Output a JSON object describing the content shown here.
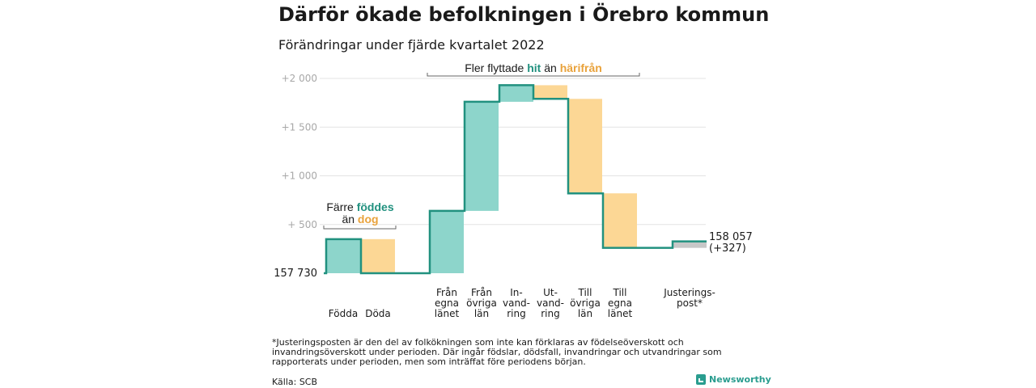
{
  "title": "Därför ökade befolkningen i Örebro kommun",
  "subtitle": "Förändringar under fjärde kvartalet 2022",
  "colors": {
    "teal_fill": "#8dd5cb",
    "teal_line": "#21917f",
    "orange_fill": "#fcd795",
    "orange_text": "#e9a23b",
    "gray_fill": "#c7c7c7",
    "grid": "#e3e3e3",
    "tick_text": "#a8a8a8"
  },
  "annotations": {
    "fler": {
      "text_before": "Fler flyttade ",
      "hit": "hit",
      "mid": " än ",
      "harifran": "härifrån"
    },
    "farre": {
      "line1_before": "Färre ",
      "foddes": "föddes",
      "line2_before": "än ",
      "dog": "dog"
    }
  },
  "chart_data": {
    "type": "waterfall",
    "title": "Därför ökade befolkningen i Örebro kommun",
    "subtitle": "Förändringar under fjärde kvartalet 2022",
    "start_label": "157 730",
    "end_label": "158 057",
    "end_change_label": "(+327)",
    "ylim": [
      0,
      2000
    ],
    "yticks": [
      {
        "value": 500,
        "label": "+ 500"
      },
      {
        "value": 1000,
        "label": "+1 000"
      },
      {
        "value": 1500,
        "label": "+1 500"
      },
      {
        "value": 2000,
        "label": "+2 000"
      }
    ],
    "grid": true,
    "steps": [
      {
        "label_lines": [
          "Födda"
        ],
        "value": 350,
        "kind": "in"
      },
      {
        "label_lines": [
          "Döda"
        ],
        "value": -350,
        "kind": "out"
      },
      {
        "label_lines": [
          "Från",
          "egna",
          "länet"
        ],
        "value": 640,
        "kind": "in"
      },
      {
        "label_lines": [
          "Från",
          "övriga",
          "län"
        ],
        "value": 1120,
        "kind": "in"
      },
      {
        "label_lines": [
          "In-",
          "vand-",
          "ring"
        ],
        "value": 170,
        "kind": "in"
      },
      {
        "label_lines": [
          "Ut-",
          "vand-",
          "ring"
        ],
        "value": -140,
        "kind": "out"
      },
      {
        "label_lines": [
          "Till",
          "övriga",
          "län"
        ],
        "value": -970,
        "kind": "out"
      },
      {
        "label_lines": [
          "Till",
          "egna",
          "länet"
        ],
        "value": -560,
        "kind": "out"
      },
      {
        "label_lines": [
          "Justerings-",
          "post*"
        ],
        "value": 67,
        "kind": "adjust"
      }
    ]
  },
  "footnote": "*Justeringsposten är den del av folkökningen som inte kan förklaras av födelseöverskott och invandringsöverskott under perioden. Där ingår födslar, dödsfall, invandringar och utvandringar som rapporterats under perioden, men som inträffat före periodens början.",
  "source": "Källa: SCB",
  "logo_text": "Newsworthy"
}
